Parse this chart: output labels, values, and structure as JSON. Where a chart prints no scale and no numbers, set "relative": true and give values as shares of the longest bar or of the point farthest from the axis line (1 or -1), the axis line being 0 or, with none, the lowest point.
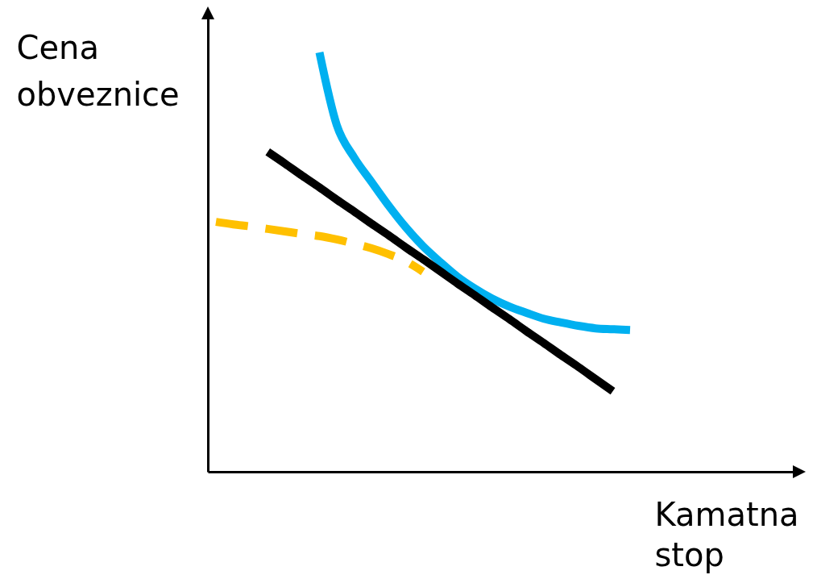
{
  "chart_data": {
    "type": "line",
    "relative": true,
    "xlabel": "Kamatna stop",
    "ylabel": "Cena obveznice",
    "grid": false,
    "tick_labels": false,
    "marker": "none",
    "categories": [
      null,
      null,
      null,
      null,
      null,
      null,
      null,
      null,
      null,
      null,
      null,
      null,
      null,
      null,
      null,
      null,
      null,
      null,
      null,
      null,
      null,
      null,
      null,
      null,
      null
    ],
    "series": [
      {
        "color": "#00b0f0",
        "line_style": "solid",
        "values": [
          null,
          null,
          null,
          null,
          null,
          null,
          1,
          0.827,
          0.75,
          0.692,
          0.635,
          0.583,
          0.538,
          0.5,
          0.465,
          0.437,
          0.413,
          0.394,
          0.379,
          0.365,
          0.356,
          0.348,
          0.342,
          0.34,
          0.338
        ]
      },
      {
        "color": "#000000",
        "line_style": "solid",
        "values": [
          null,
          null,
          null,
          0.763,
          0.735,
          0.706,
          0.678,
          0.649,
          0.621,
          0.592,
          0.564,
          0.535,
          0.507,
          0.478,
          0.449,
          0.421,
          0.392,
          0.364,
          0.335,
          0.307,
          0.278,
          0.25,
          0.221,
          0.192,
          null
        ]
      },
      {
        "color": "#ffc000",
        "line_style": "dashed",
        "values": [
          0.596,
          0.59,
          0.585,
          0.579,
          0.573,
          0.567,
          0.562,
          0.554,
          0.544,
          0.533,
          0.519,
          0.502,
          0.477,
          null,
          null,
          null,
          null,
          null,
          null,
          null,
          null,
          null,
          null,
          null,
          null
        ]
      }
    ]
  }
}
